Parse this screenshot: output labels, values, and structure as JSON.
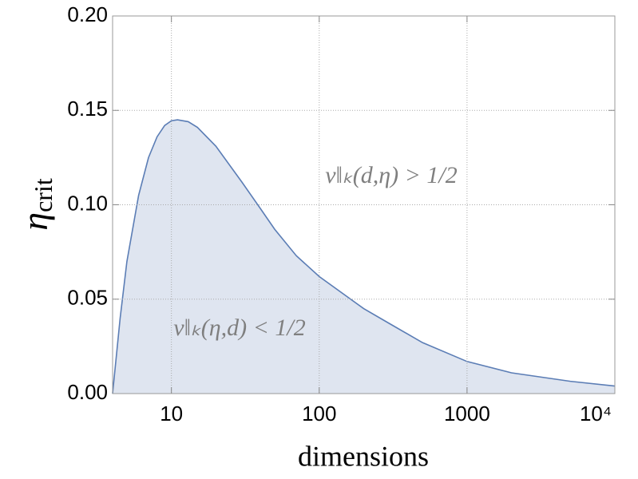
{
  "chart_data": {
    "type": "area",
    "xlabel": "dimensions",
    "ylabel": "η",
    "ylabel_subscript": "crit",
    "x": [
      4,
      4.5,
      5,
      6,
      7,
      8,
      9,
      10,
      11,
      13,
      15,
      20,
      30,
      40,
      50,
      70,
      100,
      200,
      300,
      500,
      1000,
      2000,
      5000,
      10000
    ],
    "series": [
      {
        "color": "#5b7db5",
        "values": [
          0.0,
          0.04,
          0.07,
          0.105,
          0.125,
          0.136,
          0.142,
          0.1445,
          0.145,
          0.144,
          0.141,
          0.131,
          0.112,
          0.098,
          0.087,
          0.073,
          0.062,
          0.045,
          0.037,
          0.027,
          0.017,
          0.011,
          0.0065,
          0.004
        ]
      }
    ],
    "fill_color": "#dfe5f0",
    "xlim": [
      4,
      10000
    ],
    "xscale": "log",
    "xticks": [
      10,
      100,
      1000,
      {
        "value": 10000,
        "label": "10⁴"
      }
    ],
    "ylim": [
      0,
      0.2
    ],
    "yticks": [
      {
        "value": 0,
        "label": "0.00"
      },
      {
        "value": 0.05,
        "label": "0.05"
      },
      {
        "value": 0.1,
        "label": "0.10"
      },
      {
        "value": 0.15,
        "label": "0.15"
      },
      {
        "value": 0.2,
        "label": "0.20"
      }
    ],
    "grid": true,
    "annotations": [
      {
        "text": "ν‖ₖ(d,η) > 1/2"
      },
      {
        "text": "ν‖ₖ(η,d) < 1/2"
      }
    ]
  }
}
